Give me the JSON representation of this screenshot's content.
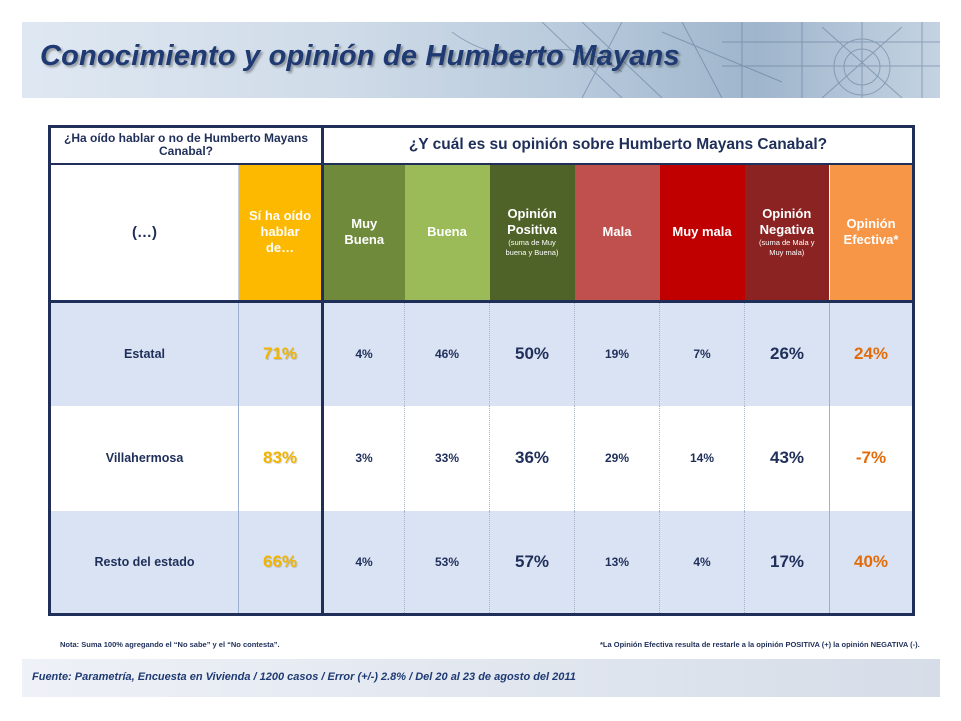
{
  "title": "Conocimiento y opinión de Humberto Mayans",
  "table": {
    "question1": "¿Ha oído hablar o no de Humberto Mayans Canabal?",
    "question2": "¿Y cuál es su opinión sobre Humberto Mayans Canabal?",
    "columns": {
      "row_label": "(…)",
      "sabe_line1": "Sí ha oído",
      "sabe_line2": "hablar",
      "sabe_line3": "de…",
      "muy_buena_line1": "Muy",
      "muy_buena_line2": "Buena",
      "buena": "Buena",
      "positiva_line1": "Opinión",
      "positiva_line2": "Positiva",
      "positiva_note1": "(suma de Muy",
      "positiva_note2": "buena y Buena)",
      "mala": "Mala",
      "muy_mala": "Muy mala",
      "negativa_line1": "Opinión",
      "negativa_line2": "Negativa",
      "negativa_note1": "(suma de Mala y",
      "negativa_note2": "Muy mala)",
      "efectiva_line1": "Opinión",
      "efectiva_line2": "Efectiva*"
    },
    "rows": [
      {
        "label": "Estatal",
        "sabe": "71%",
        "muy_buena": "4%",
        "buena": "46%",
        "positiva": "50%",
        "mala": "19%",
        "muy_mala": "7%",
        "negativa": "26%",
        "efectiva": "24%"
      },
      {
        "label": "Villahermosa",
        "sabe": "83%",
        "muy_buena": "3%",
        "buena": "33%",
        "positiva": "36%",
        "mala": "29%",
        "muy_mala": "14%",
        "negativa": "43%",
        "efectiva": "-7%"
      },
      {
        "label": "Resto del estado",
        "sabe": "66%",
        "muy_buena": "4%",
        "buena": "53%",
        "positiva": "57%",
        "mala": "13%",
        "muy_mala": "4%",
        "negativa": "17%",
        "efectiva": "40%"
      }
    ]
  },
  "note": "Nota: Suma 100% agregando el “No sabe” y el “No contesta”.",
  "footnote": "*La Opinión Efectiva resulta de restarle a la opinión POSITIVA (+) la opinión NEGATIVA (-).",
  "source": "Fuente: Parametría, Encuesta en Vivienda / 1200 casos / Error (+/-) 2.8% / Del 20 al 23 de agosto del 2011",
  "colors": {
    "sabe": "#fcb900",
    "muy_buena": "#6f8a3a",
    "buena": "#9bbb59",
    "positiva": "#4f6228",
    "mala": "#c0504d",
    "muy_mala": "#c00000",
    "negativa": "#8b2323",
    "efectiva": "#f79646"
  }
}
